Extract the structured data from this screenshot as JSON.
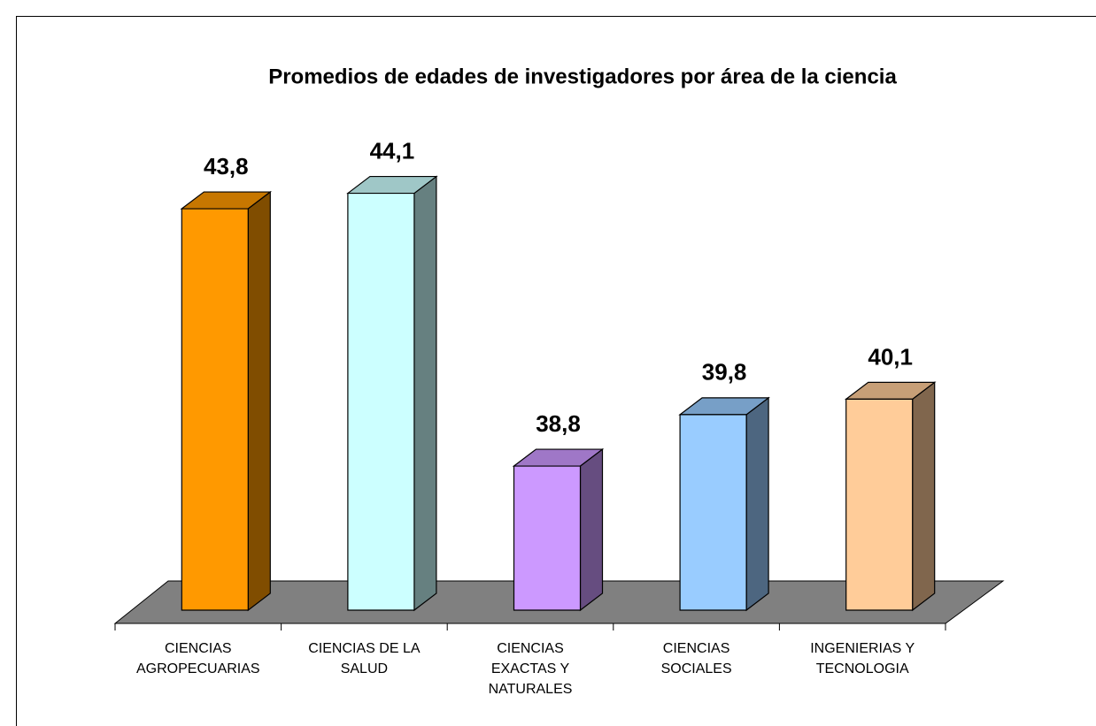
{
  "chart_data": {
    "type": "bar3d",
    "title": "Promedios de edades de investigadores por área de la ciencia",
    "categories": [
      "CIENCIAS\nAGROPECUARIAS",
      "CIENCIAS DE LA\nSALUD",
      "CIENCIAS\nEXACTAS Y\nNATURALES",
      "CIENCIAS\nSOCIALES",
      "INGENIERIAS Y\nTECNOLOGIA"
    ],
    "values": [
      43.8,
      44.1,
      38.8,
      39.8,
      40.1
    ],
    "value_labels": [
      "43,8",
      "44,1",
      "38,8",
      "39,8",
      "40,1"
    ],
    "colors": [
      "#ff9900",
      "#ccffff",
      "#cc99ff",
      "#99ccff",
      "#ffcc99"
    ],
    "ylim": [
      36,
      46
    ]
  }
}
